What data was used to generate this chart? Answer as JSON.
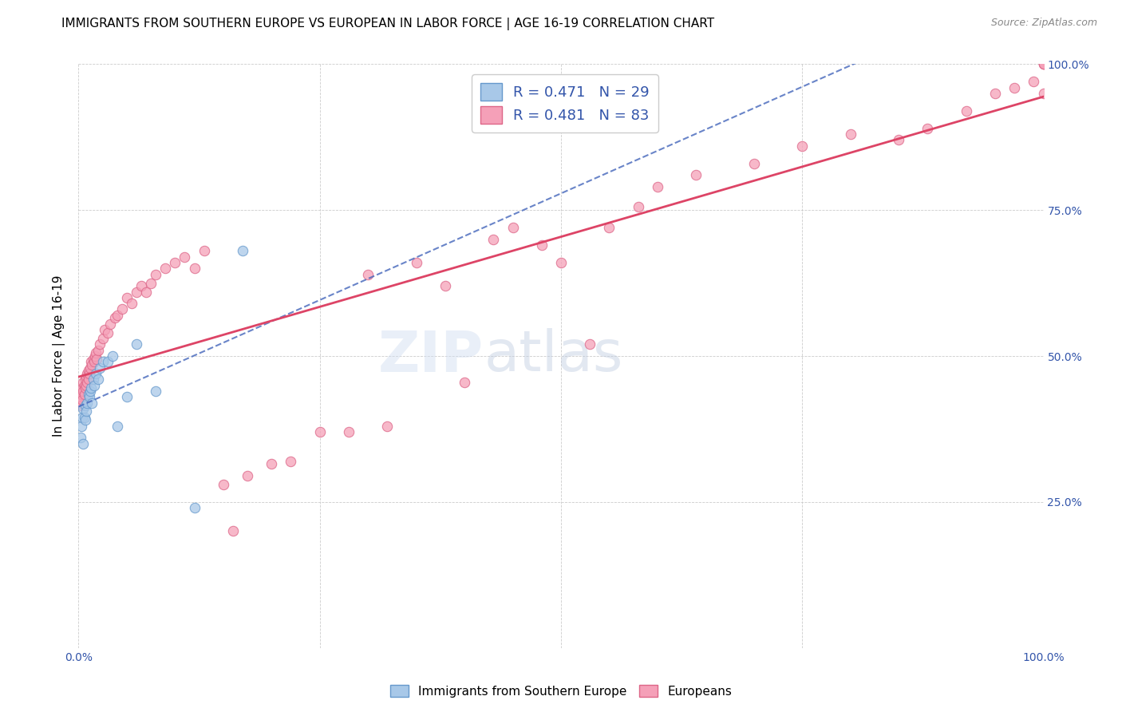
{
  "title": "IMMIGRANTS FROM SOUTHERN EUROPE VS EUROPEAN IN LABOR FORCE | AGE 16-19 CORRELATION CHART",
  "source": "Source: ZipAtlas.com",
  "ylabel": "In Labor Force | Age 16-19",
  "xlim": [
    0,
    1
  ],
  "ylim": [
    0,
    1
  ],
  "legend_entries": [
    {
      "label": "R = 0.471   N = 29"
    },
    {
      "label": "R = 0.481   N = 83"
    }
  ],
  "series1_color": "#a8c8e8",
  "series1_edge": "#6699cc",
  "series2_color": "#f5a0b8",
  "series2_edge": "#dd6688",
  "line1_color": "#4466bb",
  "line2_color": "#dd4466",
  "title_fontsize": 11,
  "axis_label_fontsize": 11,
  "tick_fontsize": 10,
  "background_color": "#ffffff",
  "grid_color": "#cccccc",
  "marker_size": 80,
  "blue_x": [
    0.002,
    0.003,
    0.004,
    0.005,
    0.005,
    0.006,
    0.007,
    0.007,
    0.008,
    0.009,
    0.01,
    0.011,
    0.012,
    0.013,
    0.014,
    0.015,
    0.016,
    0.018,
    0.02,
    0.022,
    0.025,
    0.03,
    0.035,
    0.04,
    0.05,
    0.06,
    0.08,
    0.12,
    0.17
  ],
  "blue_y": [
    0.36,
    0.38,
    0.395,
    0.35,
    0.41,
    0.395,
    0.415,
    0.39,
    0.405,
    0.42,
    0.435,
    0.43,
    0.44,
    0.445,
    0.42,
    0.46,
    0.45,
    0.47,
    0.46,
    0.48,
    0.49,
    0.49,
    0.5,
    0.38,
    0.43,
    0.52,
    0.44,
    0.24,
    0.68
  ],
  "pink_x": [
    0.001,
    0.002,
    0.002,
    0.003,
    0.003,
    0.004,
    0.004,
    0.005,
    0.005,
    0.006,
    0.006,
    0.007,
    0.007,
    0.008,
    0.008,
    0.009,
    0.009,
    0.01,
    0.01,
    0.011,
    0.012,
    0.013,
    0.014,
    0.015,
    0.016,
    0.017,
    0.018,
    0.019,
    0.02,
    0.022,
    0.025,
    0.027,
    0.03,
    0.033,
    0.038,
    0.04,
    0.045,
    0.05,
    0.055,
    0.06,
    0.065,
    0.07,
    0.075,
    0.08,
    0.09,
    0.1,
    0.11,
    0.12,
    0.13,
    0.15,
    0.16,
    0.175,
    0.2,
    0.22,
    0.25,
    0.28,
    0.3,
    0.32,
    0.35,
    0.38,
    0.4,
    0.43,
    0.45,
    0.48,
    0.5,
    0.53,
    0.55,
    0.58,
    0.6,
    0.64,
    0.7,
    0.75,
    0.8,
    0.85,
    0.88,
    0.92,
    0.95,
    0.97,
    0.99,
    1.0,
    1.0,
    1.0,
    1.0
  ],
  "pink_y": [
    0.42,
    0.43,
    0.44,
    0.415,
    0.435,
    0.445,
    0.425,
    0.44,
    0.455,
    0.435,
    0.45,
    0.445,
    0.46,
    0.45,
    0.465,
    0.455,
    0.47,
    0.46,
    0.475,
    0.47,
    0.48,
    0.49,
    0.485,
    0.495,
    0.49,
    0.5,
    0.505,
    0.495,
    0.51,
    0.52,
    0.53,
    0.545,
    0.54,
    0.555,
    0.565,
    0.57,
    0.58,
    0.6,
    0.59,
    0.61,
    0.62,
    0.61,
    0.625,
    0.64,
    0.65,
    0.66,
    0.67,
    0.65,
    0.68,
    0.28,
    0.2,
    0.295,
    0.315,
    0.32,
    0.37,
    0.37,
    0.64,
    0.38,
    0.66,
    0.62,
    0.455,
    0.7,
    0.72,
    0.69,
    0.66,
    0.52,
    0.72,
    0.755,
    0.79,
    0.81,
    0.83,
    0.86,
    0.88,
    0.87,
    0.89,
    0.92,
    0.95,
    0.96,
    0.97,
    0.95,
    1.0,
    1.0,
    1.0
  ],
  "line1_x0": 0.0,
  "line1_y0": 0.355,
  "line1_x1": 0.25,
  "line1_y1": 0.62,
  "line2_x0": 0.0,
  "line2_y0": 0.42,
  "line2_x1": 1.0,
  "line2_y1": 1.0
}
